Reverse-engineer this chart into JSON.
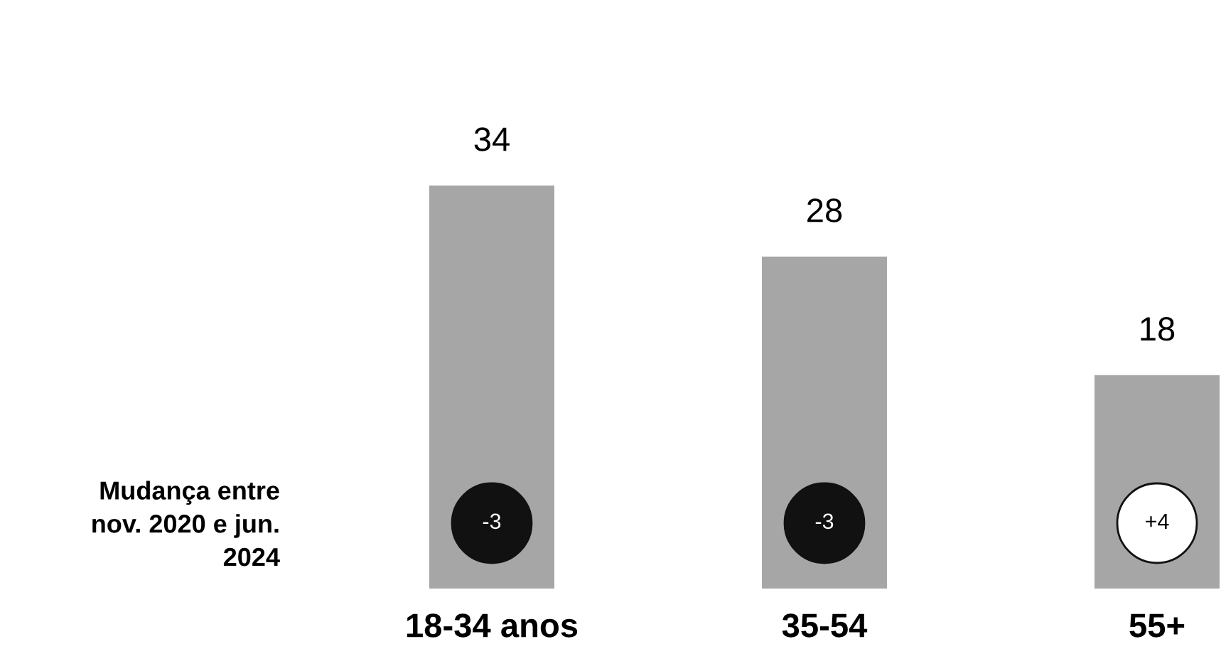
{
  "chart_data": {
    "type": "bar",
    "categories": [
      "18-34 anos",
      "35-54",
      "55+"
    ],
    "values": [
      34,
      28,
      18
    ],
    "color": "#a6a6a6",
    "data_labels": true,
    "annotations": [
      "Mudança entre nov. 2020 e jun. 2024",
      "-3",
      "-3",
      "+4"
    ]
  }
}
